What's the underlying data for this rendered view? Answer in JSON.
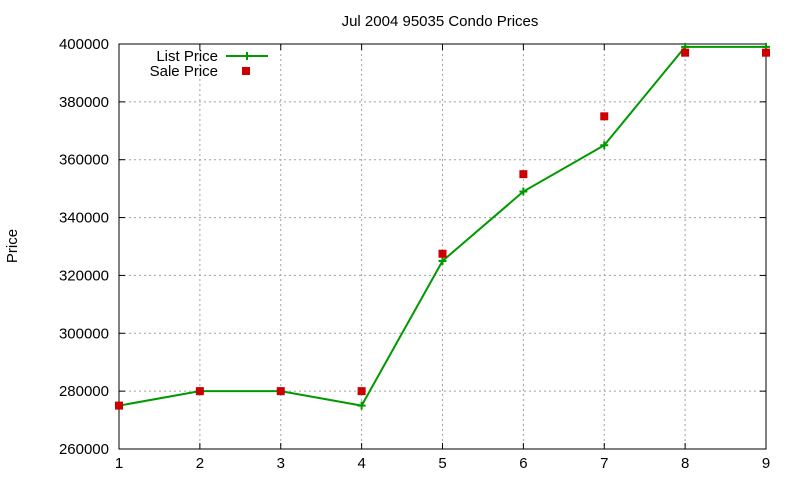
{
  "chart_data": {
    "type": "line",
    "title": "Jul 2004 95035 Condo Prices",
    "xlabel": "",
    "ylabel": "Price",
    "xlim": [
      1,
      9
    ],
    "ylim": [
      260000,
      400000
    ],
    "x_ticks": [
      "1",
      "2",
      "3",
      "4",
      "5",
      "6",
      "7",
      "8",
      "9"
    ],
    "y_ticks": [
      "260000",
      "280000",
      "300000",
      "320000",
      "340000",
      "360000",
      "380000",
      "400000"
    ],
    "grid": true,
    "legend_position": "top-left",
    "series": [
      {
        "name": "List Price",
        "style": "line with plus markers",
        "color": "#009900",
        "x": [
          1,
          2,
          3,
          4,
          5,
          6,
          7,
          8,
          9
        ],
        "y": [
          275000,
          280000,
          280000,
          275000,
          325000,
          349000,
          365000,
          399000,
          399000
        ]
      },
      {
        "name": "Sale Price",
        "style": "square markers",
        "color": "#cc0000",
        "x": [
          1,
          2,
          3,
          4,
          5,
          6,
          7,
          8,
          9
        ],
        "y": [
          275000,
          280000,
          280000,
          280000,
          327500,
          355000,
          375000,
          397000,
          397000
        ]
      }
    ]
  }
}
